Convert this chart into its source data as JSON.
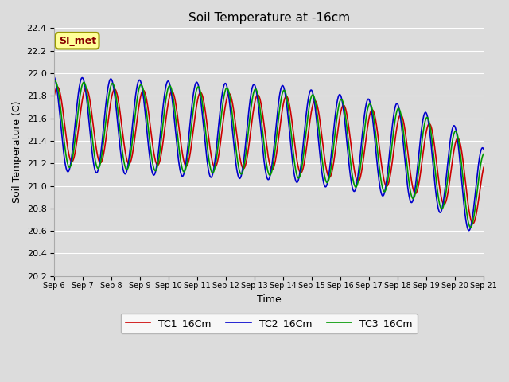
{
  "title": "Soil Temperature at -16cm",
  "xlabel": "Time",
  "ylabel": "Soil Temperature (C)",
  "ylim": [
    20.2,
    22.4
  ],
  "background_color": "#dcdcdc",
  "grid_color": "#ffffff",
  "legend_entries": [
    "TC1_16Cm",
    "TC2_16Cm",
    "TC3_16Cm"
  ],
  "line_colors": [
    "#cc0000",
    "#0000cc",
    "#009900"
  ],
  "annotation_text": "SI_met",
  "annotation_bg": "#ffff99",
  "annotation_border": "#999900",
  "annotation_text_color": "#880000",
  "tick_labels": [
    "Sep 6",
    "Sep 7",
    "Sep 8",
    "Sep 9",
    "Sep 10",
    "Sep 11",
    "Sep 12",
    "Sep 13",
    "Sep 14",
    "Sep 15",
    "Sep 16",
    "Sep 17",
    "Sep 18",
    "Sep 19",
    "Sep 20",
    "Sep 21"
  ]
}
